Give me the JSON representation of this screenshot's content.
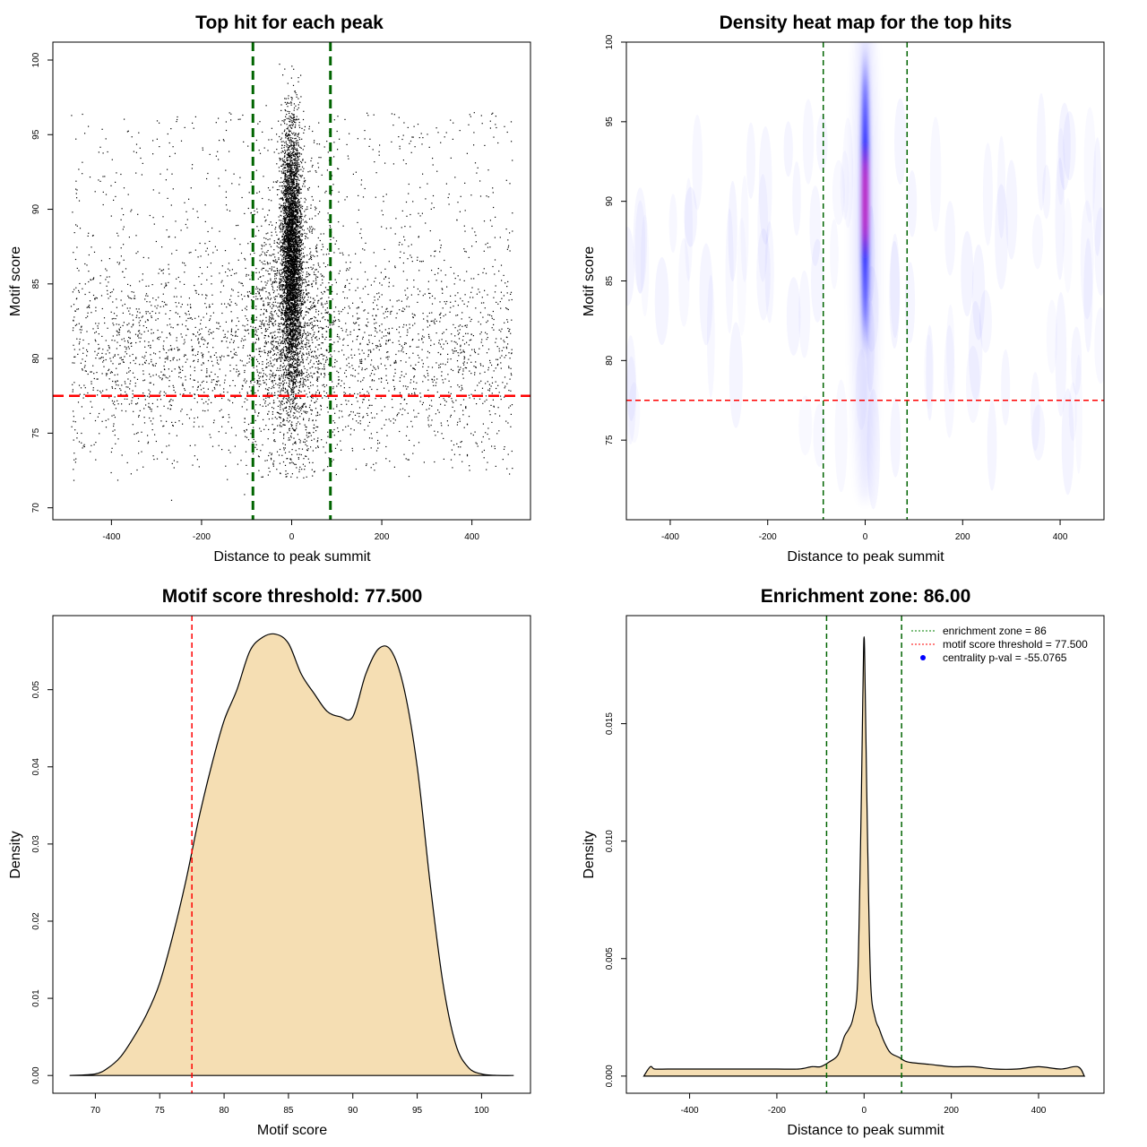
{
  "chart_data": [
    {
      "type": "scatter",
      "title": "Top hit for each peak",
      "xlabel": "Distance to peak summit",
      "ylabel": "Motif score",
      "xlim": [
        -530,
        530
      ],
      "ylim": [
        69.2,
        101.2
      ],
      "xticks": [
        -400,
        -200,
        0,
        200,
        400
      ],
      "yticks": [
        70,
        75,
        80,
        85,
        90,
        95,
        100
      ],
      "xtick_labels": [
        "-400",
        "-200",
        "0",
        "200",
        "400"
      ],
      "ytick_labels": [
        "70",
        "75",
        "80",
        "85",
        "90",
        "95",
        "100"
      ],
      "vlines": [
        -86,
        86
      ],
      "hline": 77.5,
      "point_color": "#000000",
      "vline_color": "#006400",
      "hline_color": "#ff0000",
      "points_description": "about 5000 background hits uniform over -490..490 with scores 72-96 (denser 76-86), plus a dense central column at 0 with scores 73-100"
    },
    {
      "type": "heatmap",
      "title": "Density heat map for the top hits",
      "xlabel": "Distance to peak summit",
      "ylabel": "Motif score",
      "xlim": [
        -490,
        490
      ],
      "ylim": [
        70,
        100
      ],
      "xticks": [
        -400,
        -200,
        0,
        200,
        400
      ],
      "yticks": [
        75,
        80,
        85,
        90,
        95,
        100
      ],
      "xtick_labels": [
        "-400",
        "-200",
        "0",
        "200",
        "400"
      ],
      "ytick_labels": [
        "75",
        "80",
        "85",
        "90",
        "95",
        "100"
      ],
      "vlines": [
        -86,
        86
      ],
      "hline": 77.5,
      "hotspot": {
        "x": 0,
        "y": 93,
        "x_spread": 8,
        "y_range": [
          80,
          99
        ]
      },
      "colors": [
        "#ffffff",
        "#0000ff",
        "#ff0000"
      ]
    },
    {
      "type": "area",
      "title": "Motif score threshold: 77.500",
      "xlabel": "Motif score",
      "ylabel": "Density",
      "xlim": [
        66.7,
        103.8
      ],
      "ylim": [
        -0.0023,
        0.0596
      ],
      "xticks": [
        70,
        75,
        80,
        85,
        90,
        95,
        100
      ],
      "yticks": [
        0,
        0.01,
        0.02,
        0.03,
        0.04,
        0.05
      ],
      "xtick_labels": [
        "70",
        "75",
        "80",
        "85",
        "90",
        "95",
        "100"
      ],
      "ytick_labels": [
        "0.00",
        "0.01",
        "0.02",
        "0.03",
        "0.04",
        "0.05"
      ],
      "vlines": [
        77.5
      ],
      "fill_color": "#f5deb3",
      "x": [
        68,
        70,
        71,
        72,
        73,
        74,
        75,
        76,
        77,
        78,
        79,
        80,
        81,
        82,
        83,
        84,
        85,
        86,
        87,
        88,
        89,
        90,
        91,
        92,
        93,
        94,
        95,
        96,
        97,
        98,
        99,
        100,
        101,
        102.5
      ],
      "values": [
        0,
        0.0002,
        0.001,
        0.0025,
        0.005,
        0.008,
        0.012,
        0.018,
        0.025,
        0.033,
        0.04,
        0.046,
        0.05,
        0.055,
        0.0568,
        0.0572,
        0.056,
        0.052,
        0.0495,
        0.0472,
        0.0465,
        0.0465,
        0.052,
        0.0553,
        0.055,
        0.05,
        0.04,
        0.025,
        0.012,
        0.004,
        0.001,
        0.0002,
        2e-05,
        0
      ]
    },
    {
      "type": "area",
      "title": "Enrichment zone: 86.00",
      "xlabel": "Distance to peak summit",
      "ylabel": "Density",
      "xlim": [
        -545,
        550
      ],
      "ylim": [
        -0.00073,
        0.0196
      ],
      "xticks": [
        -400,
        -200,
        0,
        200,
        400
      ],
      "yticks": [
        0,
        0.005,
        0.01,
        0.015
      ],
      "xtick_labels": [
        "-400",
        "-200",
        "0",
        "200",
        "400"
      ],
      "ytick_labels": [
        "0.000",
        "0.005",
        "0.010",
        "0.015"
      ],
      "vlines": [
        -86,
        86
      ],
      "fill_color": "#f5deb3",
      "x": [
        -505,
        -490,
        -480,
        -450,
        -400,
        -350,
        -300,
        -250,
        -200,
        -150,
        -120,
        -100,
        -80,
        -60,
        -45,
        -35,
        -25,
        -15,
        -8,
        -3,
        0,
        3,
        8,
        15,
        25,
        35,
        45,
        60,
        80,
        100,
        150,
        200,
        250,
        300,
        350,
        400,
        450,
        490,
        505
      ],
      "values": [
        0,
        0.0004,
        0.0003,
        0.0003,
        0.0003,
        0.0003,
        0.0003,
        0.0003,
        0.0003,
        0.0003,
        0.0004,
        0.0004,
        0.0006,
        0.0009,
        0.0017,
        0.002,
        0.0025,
        0.004,
        0.01,
        0.016,
        0.0187,
        0.016,
        0.01,
        0.004,
        0.0025,
        0.002,
        0.0015,
        0.001,
        0.0008,
        0.0006,
        0.0005,
        0.0004,
        0.0004,
        0.0003,
        0.0003,
        0.0004,
        0.0003,
        0.0004,
        0
      ],
      "legend": [
        {
          "label": "enrichment zone = 86",
          "color": "#008000",
          "symbol": "dotted-line"
        },
        {
          "label": "motif score threshold = 77.500",
          "color": "#ff0000",
          "symbol": "dotted-line"
        },
        {
          "label": "centrality p-val = -55.0765",
          "color": "#0000ff",
          "symbol": "dot"
        }
      ]
    }
  ]
}
